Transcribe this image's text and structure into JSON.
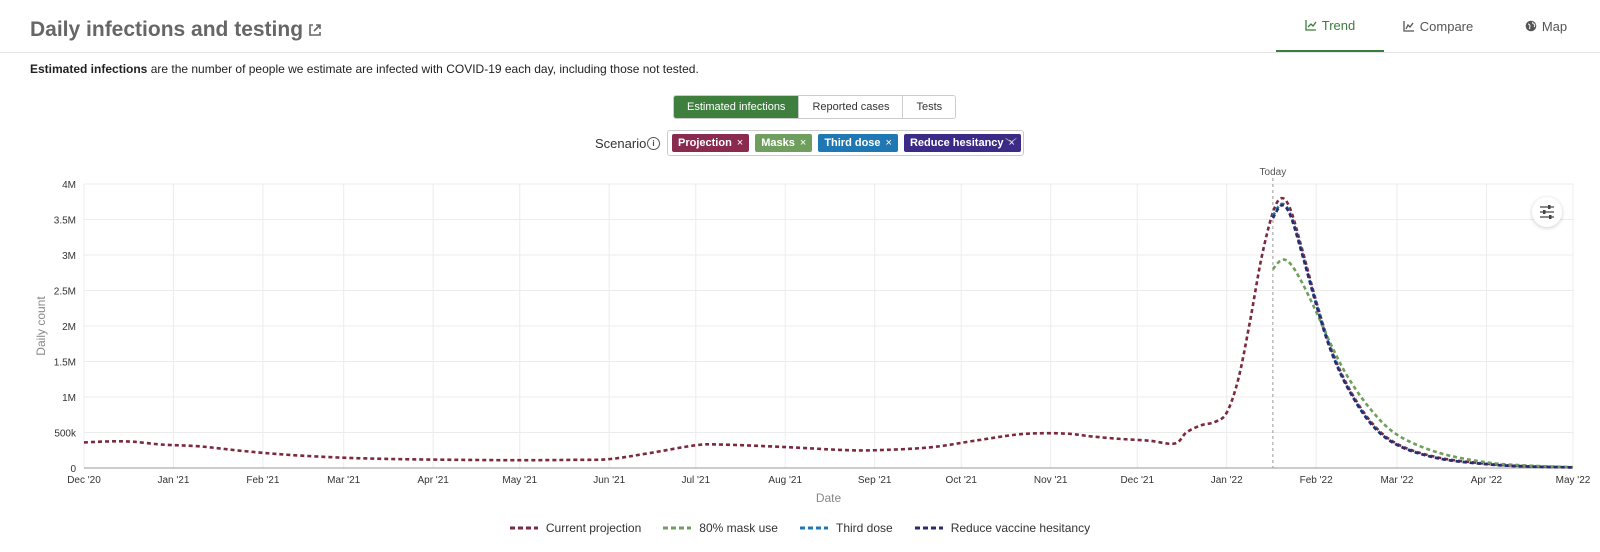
{
  "header": {
    "title": "Daily infections and testing",
    "tabs": [
      {
        "label": "Trend",
        "icon": "line-chart-icon",
        "active": true
      },
      {
        "label": "Compare",
        "icon": "area-chart-icon",
        "active": false
      },
      {
        "label": "Map",
        "icon": "globe-icon",
        "active": false
      }
    ]
  },
  "description": {
    "bold": "Estimated infections",
    "rest": " are the number of people we estimate are infected with COVID-19 each day, including those not tested."
  },
  "metric_tabs": [
    {
      "label": "Estimated infections",
      "active": true
    },
    {
      "label": "Reported cases",
      "active": false
    },
    {
      "label": "Tests",
      "active": false
    }
  ],
  "scenario": {
    "label": "Scenario",
    "chips": [
      {
        "label": "Projection",
        "color": "#8a2a4e"
      },
      {
        "label": "Masks",
        "color": "#6f9e5f"
      },
      {
        "label": "Third dose",
        "color": "#1f78b4"
      },
      {
        "label": "Reduce hesitancy",
        "color": "#3b2a86"
      }
    ]
  },
  "chart_data": {
    "type": "line",
    "ylabel": "Daily count",
    "xlabel": "Date",
    "ylim": [
      0,
      4000000
    ],
    "yticks": [
      {
        "v": 0,
        "label": "0"
      },
      {
        "v": 500000,
        "label": "500k"
      },
      {
        "v": 1000000,
        "label": "1M"
      },
      {
        "v": 1500000,
        "label": "1.5M"
      },
      {
        "v": 2000000,
        "label": "2M"
      },
      {
        "v": 2500000,
        "label": "2.5M"
      },
      {
        "v": 3000000,
        "label": "3M"
      },
      {
        "v": 3500000,
        "label": "3.5M"
      },
      {
        "v": 4000000,
        "label": "4M"
      }
    ],
    "xlim": [
      "2020-12-01",
      "2022-05-01"
    ],
    "xticks": [
      {
        "d": "2020-12-01",
        "label": "Dec '20"
      },
      {
        "d": "2021-01-01",
        "label": "Jan '21"
      },
      {
        "d": "2021-02-01",
        "label": "Feb '21"
      },
      {
        "d": "2021-03-01",
        "label": "Mar '21"
      },
      {
        "d": "2021-04-01",
        "label": "Apr '21"
      },
      {
        "d": "2021-05-01",
        "label": "May '21"
      },
      {
        "d": "2021-06-01",
        "label": "Jun '21"
      },
      {
        "d": "2021-07-01",
        "label": "Jul '21"
      },
      {
        "d": "2021-08-01",
        "label": "Aug '21"
      },
      {
        "d": "2021-09-01",
        "label": "Sep '21"
      },
      {
        "d": "2021-10-01",
        "label": "Oct '21"
      },
      {
        "d": "2021-11-01",
        "label": "Nov '21"
      },
      {
        "d": "2021-12-01",
        "label": "Dec '21"
      },
      {
        "d": "2022-01-01",
        "label": "Jan '22"
      },
      {
        "d": "2022-02-01",
        "label": "Feb '22"
      },
      {
        "d": "2022-03-01",
        "label": "Mar '22"
      },
      {
        "d": "2022-04-01",
        "label": "Apr '22"
      },
      {
        "d": "2022-05-01",
        "label": "May '22"
      }
    ],
    "today": {
      "date": "2022-01-17",
      "label": "Today"
    },
    "legend_position": "bottom",
    "grid": true,
    "series": [
      {
        "name": "Current projection",
        "color": "#7b2a3e",
        "points": [
          [
            "2020-12-01",
            360000
          ],
          [
            "2020-12-10",
            375000
          ],
          [
            "2020-12-18",
            370000
          ],
          [
            "2020-12-28",
            330000
          ],
          [
            "2021-01-10",
            305000
          ],
          [
            "2021-01-25",
            240000
          ],
          [
            "2021-02-10",
            185000
          ],
          [
            "2021-03-01",
            145000
          ],
          [
            "2021-03-20",
            125000
          ],
          [
            "2021-04-10",
            115000
          ],
          [
            "2021-05-01",
            110000
          ],
          [
            "2021-05-20",
            115000
          ],
          [
            "2021-06-01",
            125000
          ],
          [
            "2021-06-15",
            210000
          ],
          [
            "2021-07-01",
            320000
          ],
          [
            "2021-07-10",
            330000
          ],
          [
            "2021-08-01",
            295000
          ],
          [
            "2021-08-20",
            255000
          ],
          [
            "2021-09-01",
            250000
          ],
          [
            "2021-09-20",
            290000
          ],
          [
            "2021-10-05",
            380000
          ],
          [
            "2021-10-20",
            470000
          ],
          [
            "2021-10-30",
            490000
          ],
          [
            "2021-11-08",
            480000
          ],
          [
            "2021-11-15",
            445000
          ],
          [
            "2021-11-25",
            410000
          ],
          [
            "2021-12-05",
            385000
          ],
          [
            "2021-12-14",
            345000
          ],
          [
            "2021-12-18",
            500000
          ],
          [
            "2021-12-23",
            600000
          ],
          [
            "2021-12-28",
            650000
          ],
          [
            "2022-01-01",
            780000
          ],
          [
            "2022-01-05",
            1250000
          ],
          [
            "2022-01-09",
            2050000
          ],
          [
            "2022-01-13",
            2950000
          ],
          [
            "2022-01-17",
            3600000
          ],
          [
            "2022-01-20",
            3800000
          ],
          [
            "2022-01-23",
            3650000
          ],
          [
            "2022-01-27",
            3100000
          ],
          [
            "2022-02-01",
            2350000
          ],
          [
            "2022-02-06",
            1700000
          ],
          [
            "2022-02-12",
            1150000
          ],
          [
            "2022-02-20",
            650000
          ],
          [
            "2022-03-01",
            340000
          ],
          [
            "2022-03-15",
            150000
          ],
          [
            "2022-04-01",
            60000
          ],
          [
            "2022-04-15",
            25000
          ],
          [
            "2022-05-01",
            10000
          ]
        ]
      },
      {
        "name": "80% mask use",
        "color": "#6f9e5f",
        "points": [
          [
            "2022-01-17",
            2800000
          ],
          [
            "2022-01-20",
            2930000
          ],
          [
            "2022-01-23",
            2880000
          ],
          [
            "2022-01-27",
            2620000
          ],
          [
            "2022-02-01",
            2200000
          ],
          [
            "2022-02-06",
            1750000
          ],
          [
            "2022-02-12",
            1280000
          ],
          [
            "2022-02-20",
            820000
          ],
          [
            "2022-03-01",
            470000
          ],
          [
            "2022-03-15",
            220000
          ],
          [
            "2022-04-01",
            80000
          ],
          [
            "2022-04-15",
            35000
          ],
          [
            "2022-05-01",
            12000
          ]
        ]
      },
      {
        "name": "Third dose",
        "color": "#1f78b4",
        "points": [
          [
            "2022-01-17",
            3550000
          ],
          [
            "2022-01-20",
            3720000
          ],
          [
            "2022-01-23",
            3580000
          ],
          [
            "2022-01-27",
            3050000
          ],
          [
            "2022-02-01",
            2320000
          ],
          [
            "2022-02-06",
            1680000
          ],
          [
            "2022-02-12",
            1130000
          ],
          [
            "2022-02-20",
            630000
          ],
          [
            "2022-03-01",
            330000
          ],
          [
            "2022-03-15",
            140000
          ],
          [
            "2022-04-01",
            55000
          ],
          [
            "2022-04-15",
            22000
          ],
          [
            "2022-05-01",
            9000
          ]
        ]
      },
      {
        "name": "Reduce vaccine hesitancy",
        "color": "#2a2a6e",
        "points": [
          [
            "2022-01-17",
            3520000
          ],
          [
            "2022-01-20",
            3700000
          ],
          [
            "2022-01-23",
            3560000
          ],
          [
            "2022-01-27",
            3030000
          ],
          [
            "2022-02-01",
            2300000
          ],
          [
            "2022-02-06",
            1660000
          ],
          [
            "2022-02-12",
            1120000
          ],
          [
            "2022-02-20",
            620000
          ],
          [
            "2022-03-01",
            325000
          ],
          [
            "2022-03-15",
            138000
          ],
          [
            "2022-04-01",
            53000
          ],
          [
            "2022-04-15",
            21000
          ],
          [
            "2022-05-01",
            8000
          ]
        ]
      }
    ]
  }
}
